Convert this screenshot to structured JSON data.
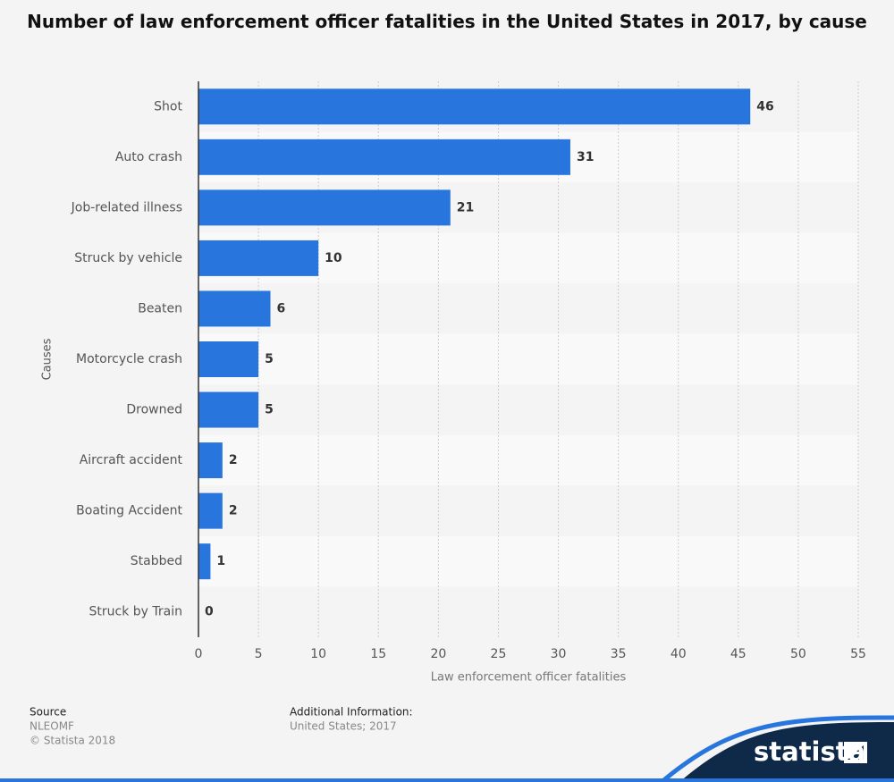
{
  "chart_data": {
    "type": "bar",
    "orientation": "horizontal",
    "title": "Number of law enforcement officer fatalities in the United States in 2017, by cause",
    "categories": [
      "Shot",
      "Auto crash",
      "Job-related illness",
      "Struck by vehicle",
      "Beaten",
      "Motorcycle crash",
      "Drowned",
      "Aircraft accident",
      "Boating Accident",
      "Stabbed",
      "Struck by Train"
    ],
    "values": [
      46,
      31,
      21,
      10,
      6,
      5,
      5,
      2,
      2,
      1,
      0
    ],
    "color": "#2876dd",
    "xlim": [
      0,
      55
    ],
    "xticks": [
      0,
      5,
      10,
      15,
      20,
      25,
      30,
      35,
      40,
      45,
      50,
      55
    ],
    "xlabel": "Law enforcement officer fatalities",
    "ylabel": "Causes",
    "grid": true
  },
  "source": {
    "label": "Source",
    "lines": [
      "NLEOMF",
      "© Statista 2018"
    ]
  },
  "additional_info": {
    "label": "Additional Information:",
    "text": "United States; 2017"
  },
  "logo": "statista"
}
